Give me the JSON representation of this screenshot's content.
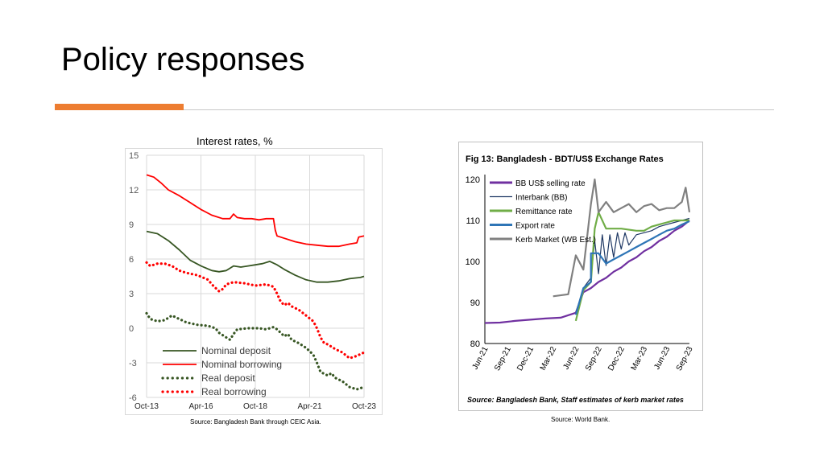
{
  "slide": {
    "title": "Policy responses",
    "accent_color": "#ed7d31"
  },
  "chart_data": [
    {
      "type": "line",
      "title": "Interest rates, %",
      "source": "Source: Bangladesh Bank through CEIC Asia.",
      "xlabels": [
        "Oct-13",
        "Apr-16",
        "Oct-18",
        "Apr-21",
        "Oct-23"
      ],
      "x": [
        0,
        30,
        60,
        90,
        120
      ],
      "ylim": [
        -6,
        15
      ],
      "yticks": [
        15,
        12,
        9,
        6,
        3,
        0,
        -3,
        -6
      ],
      "grid": true,
      "legend_position": "bottom-left",
      "series": [
        {
          "name": "Nominal deposit",
          "color": "#375623",
          "style": "solid",
          "points": [
            [
              0,
              8.4
            ],
            [
              6,
              8.2
            ],
            [
              12,
              7.6
            ],
            [
              18,
              6.8
            ],
            [
              24,
              5.9
            ],
            [
              30,
              5.4
            ],
            [
              36,
              5.0
            ],
            [
              40,
              4.9
            ],
            [
              44,
              5.0
            ],
            [
              48,
              5.4
            ],
            [
              52,
              5.3
            ],
            [
              56,
              5.4
            ],
            [
              60,
              5.5
            ],
            [
              64,
              5.6
            ],
            [
              68,
              5.8
            ],
            [
              72,
              5.5
            ],
            [
              76,
              5.1
            ],
            [
              82,
              4.6
            ],
            [
              88,
              4.2
            ],
            [
              94,
              4.0
            ],
            [
              100,
              4.0
            ],
            [
              106,
              4.1
            ],
            [
              112,
              4.3
            ],
            [
              118,
              4.4
            ],
            [
              120,
              4.5
            ]
          ]
        },
        {
          "name": "Nominal borrowing",
          "color": "#ff0000",
          "style": "solid",
          "points": [
            [
              0,
              13.3
            ],
            [
              4,
              13.1
            ],
            [
              8,
              12.6
            ],
            [
              12,
              12.0
            ],
            [
              18,
              11.5
            ],
            [
              24,
              10.9
            ],
            [
              30,
              10.3
            ],
            [
              36,
              9.8
            ],
            [
              42,
              9.5
            ],
            [
              46,
              9.5
            ],
            [
              48,
              9.9
            ],
            [
              50,
              9.6
            ],
            [
              54,
              9.5
            ],
            [
              58,
              9.5
            ],
            [
              62,
              9.4
            ],
            [
              66,
              9.5
            ],
            [
              70,
              9.5
            ],
            [
              71,
              8.5
            ],
            [
              72,
              8.0
            ],
            [
              76,
              7.8
            ],
            [
              82,
              7.5
            ],
            [
              88,
              7.3
            ],
            [
              94,
              7.2
            ],
            [
              100,
              7.1
            ],
            [
              106,
              7.1
            ],
            [
              112,
              7.3
            ],
            [
              116,
              7.4
            ],
            [
              117,
              7.9
            ],
            [
              120,
              8.0
            ]
          ]
        },
        {
          "name": "Real deposit",
          "color": "#375623",
          "style": "dotted",
          "points": [
            [
              0,
              1.3
            ],
            [
              2,
              0.8
            ],
            [
              6,
              0.6
            ],
            [
              10,
              0.7
            ],
            [
              14,
              1.1
            ],
            [
              18,
              0.8
            ],
            [
              22,
              0.5
            ],
            [
              28,
              0.3
            ],
            [
              34,
              0.2
            ],
            [
              38,
              0.0
            ],
            [
              40,
              -0.4
            ],
            [
              44,
              -0.8
            ],
            [
              46,
              -1.0
            ],
            [
              48,
              -0.5
            ],
            [
              50,
              -0.1
            ],
            [
              56,
              0.0
            ],
            [
              62,
              0.0
            ],
            [
              66,
              -0.1
            ],
            [
              70,
              0.1
            ],
            [
              72,
              -0.1
            ],
            [
              74,
              -0.4
            ],
            [
              76,
              -0.7
            ],
            [
              78,
              -0.5
            ],
            [
              80,
              -1.0
            ],
            [
              84,
              -1.3
            ],
            [
              88,
              -1.7
            ],
            [
              92,
              -2.3
            ],
            [
              94,
              -3.0
            ],
            [
              96,
              -3.8
            ],
            [
              100,
              -4.1
            ],
            [
              102,
              -3.9
            ],
            [
              104,
              -4.3
            ],
            [
              108,
              -4.6
            ],
            [
              112,
              -5.1
            ],
            [
              116,
              -5.3
            ],
            [
              120,
              -5.1
            ]
          ]
        },
        {
          "name": "Real borrowing",
          "color": "#ff0000",
          "style": "dotted",
          "points": [
            [
              0,
              5.7
            ],
            [
              2,
              5.4
            ],
            [
              6,
              5.6
            ],
            [
              10,
              5.6
            ],
            [
              14,
              5.4
            ],
            [
              18,
              5.0
            ],
            [
              22,
              4.8
            ],
            [
              28,
              4.6
            ],
            [
              34,
              4.2
            ],
            [
              36,
              3.8
            ],
            [
              38,
              3.5
            ],
            [
              40,
              3.2
            ],
            [
              42,
              3.4
            ],
            [
              44,
              3.8
            ],
            [
              48,
              4.0
            ],
            [
              54,
              3.9
            ],
            [
              60,
              3.7
            ],
            [
              66,
              3.8
            ],
            [
              70,
              3.6
            ],
            [
              72,
              3.0
            ],
            [
              74,
              2.3
            ],
            [
              76,
              2.0
            ],
            [
              78,
              2.2
            ],
            [
              80,
              1.9
            ],
            [
              84,
              1.6
            ],
            [
              88,
              1.1
            ],
            [
              92,
              0.6
            ],
            [
              94,
              0.0
            ],
            [
              96,
              -0.8
            ],
            [
              98,
              -1.3
            ],
            [
              100,
              -1.4
            ],
            [
              104,
              -1.8
            ],
            [
              108,
              -2.1
            ],
            [
              112,
              -2.6
            ],
            [
              116,
              -2.4
            ],
            [
              120,
              -2.1
            ]
          ]
        }
      ]
    },
    {
      "type": "line",
      "title": "Fig 13: Bangladesh - BDT/US$ Exchange Rates",
      "note": "Source: Bangladesh Bank, Staff estimates of kerb market rates",
      "source": "Source: World Bank.",
      "xlabels": [
        "Jun-21",
        "Sep-21",
        "Dec-21",
        "Mar-22",
        "Jun-22",
        "Sep-22",
        "Dec-22",
        "Mar-23",
        "Jun-23",
        "Sep-23"
      ],
      "x": [
        0,
        3,
        6,
        9,
        12,
        15,
        18,
        21,
        24,
        27
      ],
      "ylim": [
        80,
        120
      ],
      "yticks": [
        120,
        110,
        100,
        90,
        80
      ],
      "grid": false,
      "legend_position": "top-left",
      "series": [
        {
          "name": "BB US$ selling rate",
          "color": "#7030a0",
          "style": "solid",
          "points": [
            [
              0,
              85.0
            ],
            [
              2,
              85.1
            ],
            [
              4,
              85.5
            ],
            [
              6,
              85.8
            ],
            [
              8,
              86.1
            ],
            [
              10,
              86.3
            ],
            [
              12,
              87.5
            ],
            [
              13,
              92.5
            ],
            [
              14,
              93.5
            ],
            [
              15,
              95.0
            ],
            [
              16,
              96.0
            ],
            [
              17,
              97.5
            ],
            [
              18,
              98.5
            ],
            [
              19,
              100.0
            ],
            [
              20,
              101.0
            ],
            [
              21,
              102.5
            ],
            [
              22,
              103.5
            ],
            [
              23,
              105.0
            ],
            [
              24,
              106.0
            ],
            [
              25,
              107.5
            ],
            [
              26,
              108.5
            ],
            [
              27,
              110.0
            ]
          ]
        },
        {
          "name": "Interbank (BB)",
          "color": "#1f3864",
          "style": "solid",
          "points": [
            [
              12,
              87.5
            ],
            [
              13,
              93.5
            ],
            [
              14,
              96.0
            ],
            [
              14.5,
              105.0
            ],
            [
              15,
              97.0
            ],
            [
              15.5,
              106.5
            ],
            [
              16,
              99.0
            ],
            [
              16.5,
              106.5
            ],
            [
              17,
              101.0
            ],
            [
              17.5,
              107.0
            ],
            [
              18,
              103.0
            ],
            [
              18.5,
              107.0
            ],
            [
              19,
              104.0
            ],
            [
              20,
              106.5
            ],
            [
              21,
              107.0
            ],
            [
              22,
              107.5
            ],
            [
              23,
              108.5
            ],
            [
              24,
              109.0
            ],
            [
              25,
              109.5
            ],
            [
              26,
              110.0
            ],
            [
              27,
              110.5
            ]
          ]
        },
        {
          "name": "Remittance rate",
          "color": "#70ad47",
          "style": "solid",
          "points": [
            [
              12,
              85.5
            ],
            [
              13,
              93.0
            ],
            [
              14,
              95.0
            ],
            [
              14.5,
              108.0
            ],
            [
              15,
              112.0
            ],
            [
              16,
              108.0
            ],
            [
              18,
              108.0
            ],
            [
              20,
              107.5
            ],
            [
              21,
              107.5
            ],
            [
              22,
              108.5
            ],
            [
              23,
              109.0
            ],
            [
              24,
              109.5
            ],
            [
              25,
              110.0
            ],
            [
              26,
              110.0
            ],
            [
              27,
              110.0
            ]
          ]
        },
        {
          "name": "Export rate",
          "color": "#2e75b6",
          "style": "solid",
          "points": [
            [
              12,
              87.0
            ],
            [
              13,
              93.5
            ],
            [
              14,
              95.0
            ],
            [
              14,
              102.0
            ],
            [
              15,
              102.0
            ],
            [
              16,
              99.5
            ],
            [
              17,
              100.5
            ],
            [
              18,
              101.5
            ],
            [
              19,
              102.5
            ],
            [
              20,
              103.5
            ],
            [
              21,
              104.5
            ],
            [
              22,
              105.5
            ],
            [
              23,
              106.5
            ],
            [
              24,
              107.5
            ],
            [
              25,
              108.0
            ],
            [
              26,
              109.0
            ],
            [
              27,
              109.8
            ]
          ]
        },
        {
          "name": "Kerb Market (WB Est.)",
          "color": "#808080",
          "style": "solid",
          "points": [
            [
              9,
              91.5
            ],
            [
              11,
              92.0
            ],
            [
              12,
              101.5
            ],
            [
              13,
              98.0
            ],
            [
              14,
              114.0
            ],
            [
              14.5,
              120.0
            ],
            [
              15,
              112.0
            ],
            [
              16,
              114.5
            ],
            [
              17,
              112.0
            ],
            [
              18,
              113.0
            ],
            [
              19,
              114.0
            ],
            [
              20,
              112.0
            ],
            [
              21,
              113.5
            ],
            [
              22,
              114.0
            ],
            [
              23,
              112.5
            ],
            [
              24,
              113.0
            ],
            [
              25,
              113.0
            ],
            [
              26,
              114.5
            ],
            [
              26.5,
              118.0
            ],
            [
              27,
              112.0
            ]
          ]
        }
      ]
    }
  ]
}
